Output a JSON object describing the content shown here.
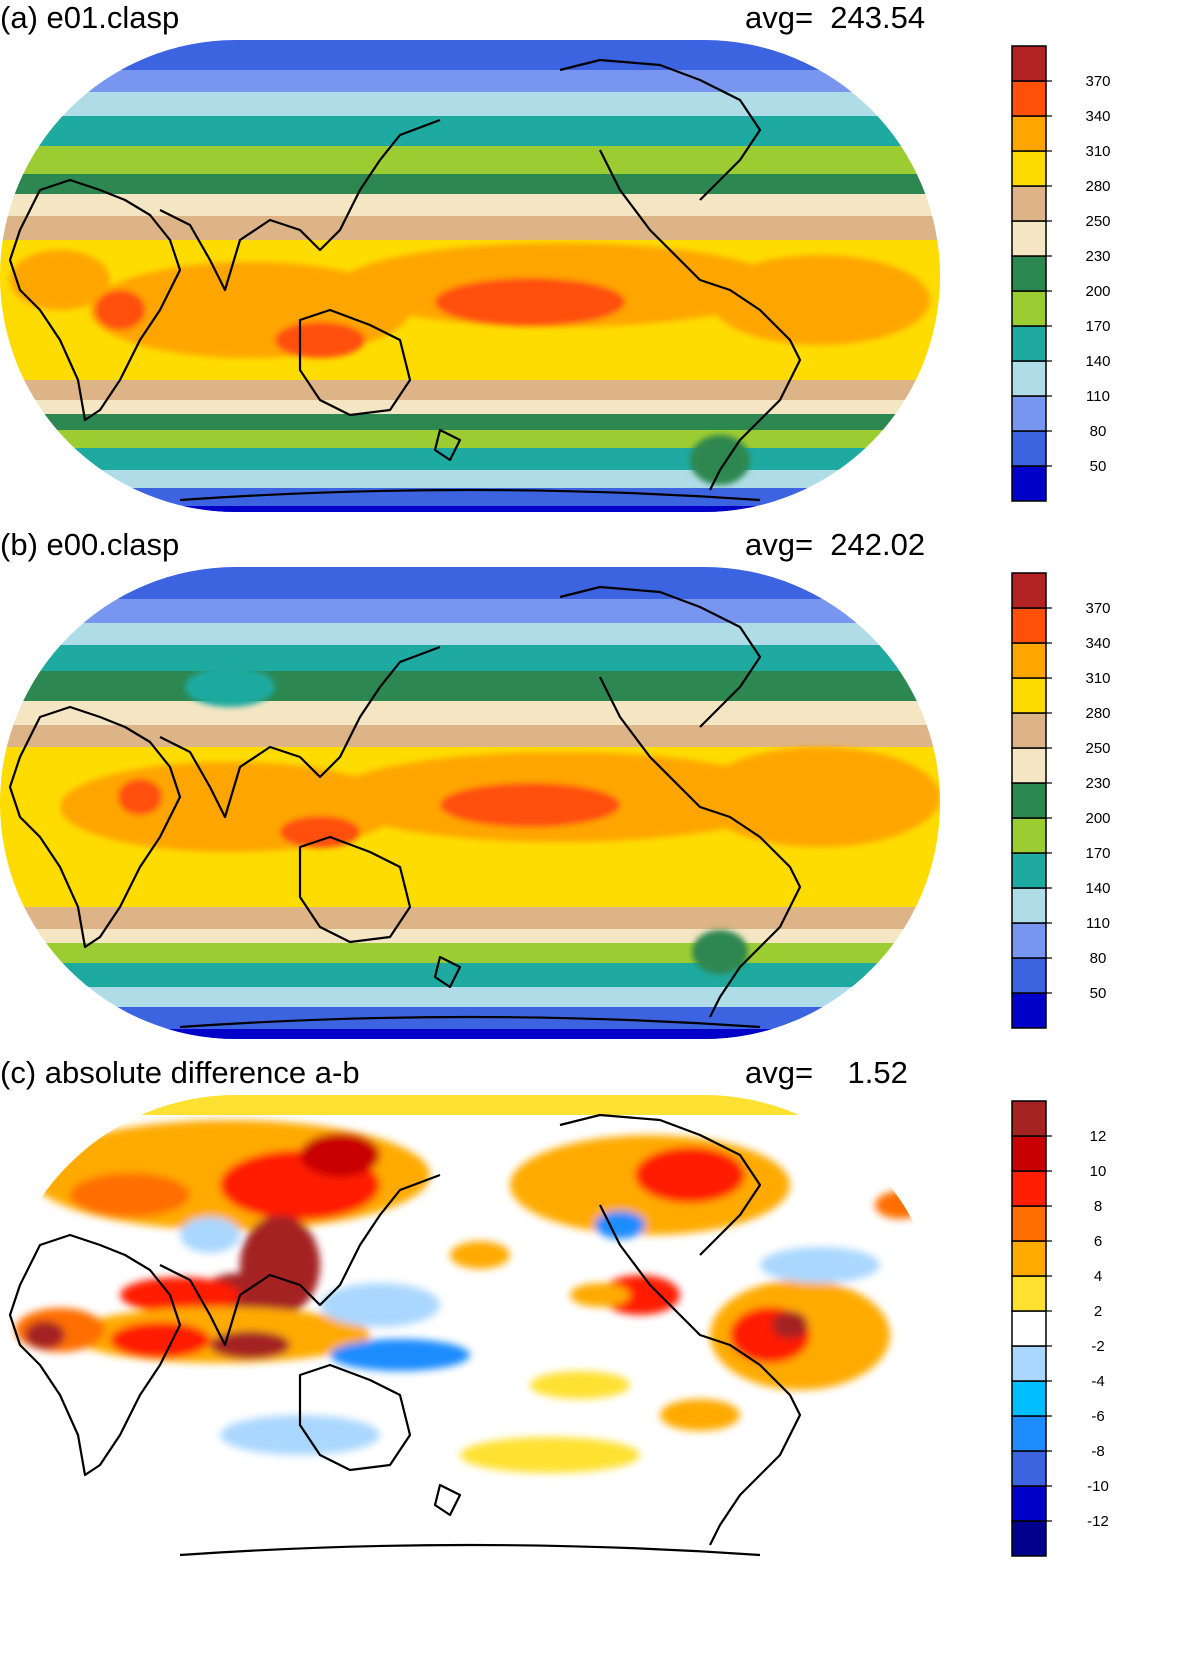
{
  "panels": [
    {
      "title": "(a) e01.clasp",
      "avg_text": "avg=  243.54",
      "colorbar": {
        "colors": [
          "#0000c8",
          "#3c64e1",
          "#7896f0",
          "#afdce6",
          "#1eaaa0",
          "#9bcd32",
          "#2d8750",
          "#f5e6c3",
          "#dcb487",
          "#ffdc00",
          "#ffa500",
          "#ff500a",
          "#b42323"
        ],
        "labels": [
          "50",
          "80",
          "110",
          "140",
          "170",
          "200",
          "230",
          "250",
          "280",
          "310",
          "340",
          "370"
        ]
      }
    },
    {
      "title": "(b) e00.clasp",
      "avg_text": "avg=  242.02",
      "colorbar": {
        "colors": [
          "#0000c8",
          "#3c64e1",
          "#7896f0",
          "#afdce6",
          "#1eaaa0",
          "#9bcd32",
          "#2d8750",
          "#f5e6c3",
          "#dcb487",
          "#ffdc00",
          "#ffa500",
          "#ff500a",
          "#b42323"
        ],
        "labels": [
          "50",
          "80",
          "110",
          "140",
          "170",
          "200",
          "230",
          "250",
          "280",
          "310",
          "340",
          "370"
        ]
      }
    },
    {
      "title": "(c) absolute difference a-b",
      "avg_text": "avg=    1.52",
      "colorbar": {
        "colors": [
          "#00008c",
          "#0000c8",
          "#3c64e1",
          "#1e8cff",
          "#00beff",
          "#aad7ff",
          "#ffffff",
          "#ffe132",
          "#ffaa00",
          "#ff6e00",
          "#ff1e00",
          "#c80000",
          "#a52323"
        ],
        "labels": [
          "-12",
          "-10",
          "-8",
          "-6",
          "-4",
          "-2",
          "2",
          "4",
          "6",
          "8",
          "10",
          "12"
        ]
      }
    }
  ]
}
